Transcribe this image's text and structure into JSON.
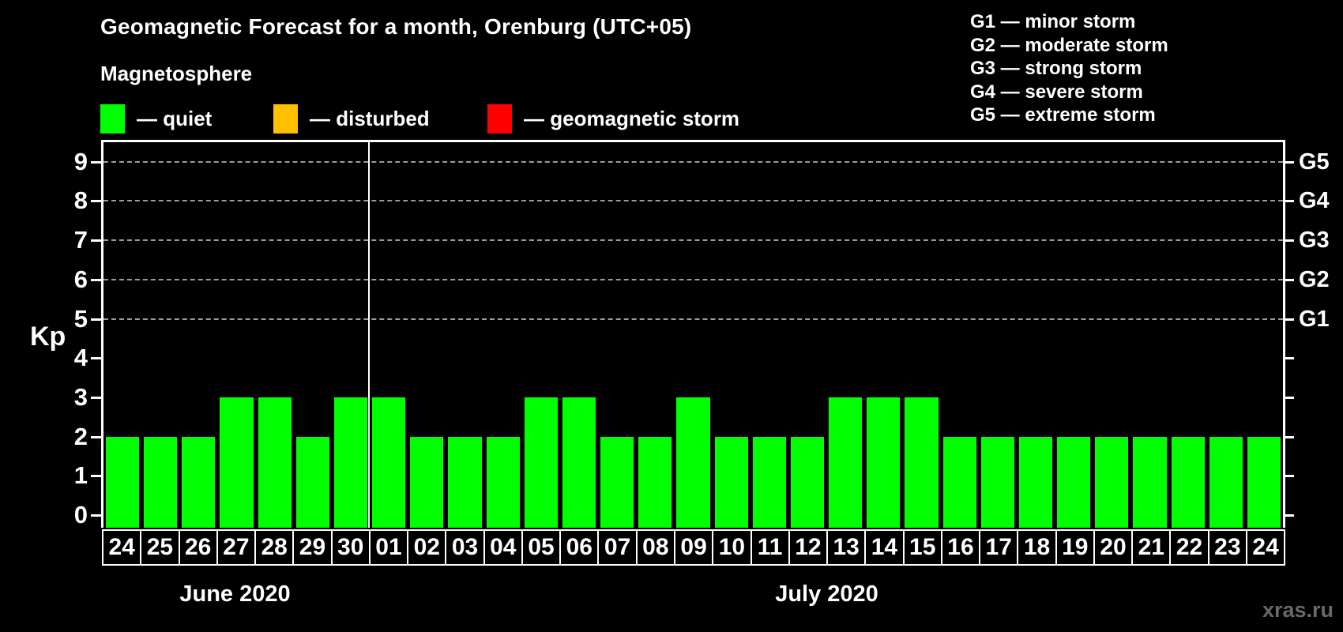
{
  "header": {
    "title": "Geomagnetic Forecast for a month, Orenburg (UTC+05)",
    "subtitle": "Magnetosphere"
  },
  "legend": {
    "items": [
      {
        "name": "quiet",
        "label": "— quiet",
        "color": "#00ff00"
      },
      {
        "name": "disturbed",
        "label": "— disturbed",
        "color": "#ffc000"
      },
      {
        "name": "geomagnetic-storm",
        "label": "— geomagnetic storm",
        "color": "#ff0000"
      }
    ]
  },
  "g_scale_legend": {
    "items": [
      "G1 — minor storm",
      "G2 — moderate storm",
      "G3 — strong storm",
      "G4 — severe storm",
      "G5 — extreme storm"
    ]
  },
  "watermark": "xras.ru",
  "chart_data": {
    "type": "bar",
    "title": "Geomagnetic Forecast for a month, Orenburg (UTC+05)",
    "ylabel": "Kp",
    "ylim": [
      0,
      9.5
    ],
    "yticks": [
      0,
      1,
      2,
      3,
      4,
      5,
      6,
      7,
      8,
      9
    ],
    "gridlines_at": [
      5,
      6,
      7,
      8,
      9
    ],
    "grid": "dashed horizontal at Kp 5-9",
    "right_axis_labels": [
      {
        "label": "G1",
        "kp": 5
      },
      {
        "label": "G2",
        "kp": 6
      },
      {
        "label": "G3",
        "kp": 7
      },
      {
        "label": "G4",
        "kp": 8
      },
      {
        "label": "G5",
        "kp": 9
      }
    ],
    "categories": [
      "24",
      "25",
      "26",
      "27",
      "28",
      "29",
      "30",
      "01",
      "02",
      "03",
      "04",
      "05",
      "06",
      "07",
      "08",
      "09",
      "10",
      "11",
      "12",
      "13",
      "14",
      "15",
      "16",
      "17",
      "18",
      "19",
      "20",
      "21",
      "22",
      "23",
      "24"
    ],
    "values": [
      2,
      2,
      2,
      3,
      3,
      2,
      3,
      3,
      2,
      2,
      2,
      3,
      3,
      2,
      2,
      3,
      2,
      2,
      2,
      3,
      3,
      3,
      2,
      2,
      2,
      2,
      2,
      2,
      2,
      2,
      2
    ],
    "series_status": "quiet",
    "bar_color": "#00ff00",
    "month_separator_after_index": 6,
    "months": [
      {
        "label": "June 2020",
        "first_index": 0,
        "last_index": 6
      },
      {
        "label": "July 2020",
        "first_index": 7,
        "last_index": 30
      }
    ]
  }
}
